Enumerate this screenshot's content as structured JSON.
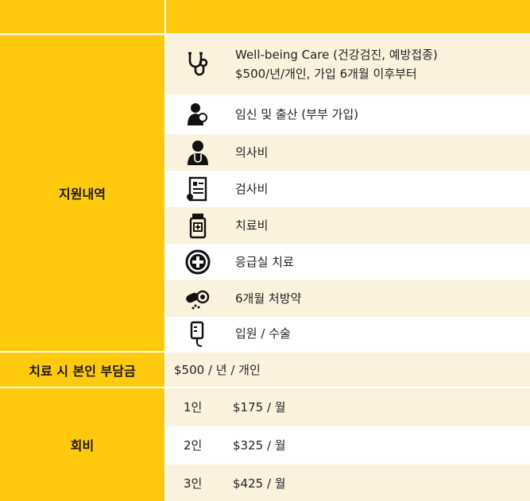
{
  "benefits": {
    "label": "지원내역",
    "items": [
      {
        "icon": "stethoscope-icon",
        "line1": "Well-being Care (건강검진, 예방접종)",
        "line2": "$500/년/개인, 가입 6개월 이후부터"
      },
      {
        "icon": "mother-baby-icon",
        "line1": "임신 및 출산 (부부 가입)"
      },
      {
        "icon": "doctor-icon",
        "line1": "의사비"
      },
      {
        "icon": "clipboard-icon",
        "line1": "검사비"
      },
      {
        "icon": "medicine-bottle-icon",
        "line1": "치료비"
      },
      {
        "icon": "medical-cross-icon",
        "line1": "응급실 치료"
      },
      {
        "icon": "pills-icon",
        "line1": "6개월 처방약"
      },
      {
        "icon": "iv-bag-icon",
        "line1": "입원 / 수술"
      }
    ]
  },
  "deductible": {
    "label": "치료 시 본인 부담금",
    "value": "$500 / 년 / 개인"
  },
  "fees": {
    "label": "회비",
    "rows": [
      {
        "count": "1인",
        "price": "$175 / 월"
      },
      {
        "count": "2인",
        "price": "$325 / 월"
      },
      {
        "count": "3인",
        "price": "$425 / 월"
      }
    ]
  },
  "colors": {
    "accent": "#FFC90E",
    "row_tint": "#FBF2DE"
  }
}
